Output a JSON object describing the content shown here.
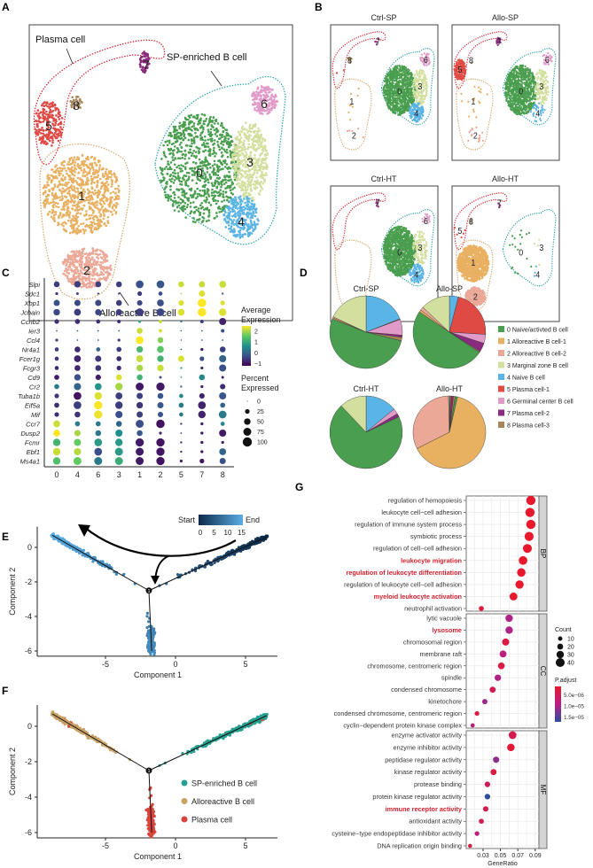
{
  "panel_labels": {
    "A": "A",
    "B": "B",
    "C": "C",
    "D": "D",
    "E": "E",
    "F": "F",
    "G": "G"
  },
  "clusters": [
    {
      "id": "0",
      "name": "0 Naive/activted B cell",
      "color": "#4a9e4f"
    },
    {
      "id": "1",
      "name": "1 Alloreactive B cell-1",
      "color": "#e8b061"
    },
    {
      "id": "2",
      "name": "2 Alloreactive B cell-2",
      "color": "#eba897"
    },
    {
      "id": "3",
      "name": "3 Marginal zone B cell",
      "color": "#d3df9e"
    },
    {
      "id": "4",
      "name": "4 Naive B cell",
      "color": "#5ab4e5"
    },
    {
      "id": "5",
      "name": "5 Plasma cell-1",
      "color": "#e04a45"
    },
    {
      "id": "6",
      "name": "6 Germinal center B cell",
      "color": "#e19bc9"
    },
    {
      "id": "7",
      "name": "7 Plasma cell-2",
      "color": "#8b2a7e"
    },
    {
      "id": "8",
      "name": "8 Plasma cell-3",
      "color": "#a8865a"
    }
  ],
  "panel_A": {
    "group_labels": {
      "plasma": "Plasma cell",
      "sp": "SP-enriched B cell",
      "allo": "Alloreactive B cell"
    },
    "group_colors": {
      "plasma": "#d6202f",
      "sp": "#2aa3a6",
      "allo": "#d9a66b"
    }
  },
  "panel_B": {
    "titles": [
      "Ctrl-SP",
      "Allo-SP",
      "Ctrl-HT",
      "Allo-HT"
    ]
  },
  "chart_data": [
    {
      "panel": "C",
      "type": "dotplot",
      "columns": [
        "0",
        "4",
        "6",
        "3",
        "1",
        "2",
        "5",
        "7",
        "8"
      ],
      "genes": [
        "Slpi",
        "Sdc1",
        "Xbp1",
        "Jchain",
        "Ccnb2",
        "Ier3",
        "Ccl4",
        "Nr4a1",
        "Fcer1g",
        "Fcgr3",
        "Cd9",
        "Cr2",
        "Tuba1b",
        "Eif5a",
        "Mif",
        "Ccr7",
        "Dusp2",
        "Fcmr",
        "Ebf1",
        "Ms4a1"
      ],
      "avg_expression": [
        [
          -0.5,
          -0.5,
          -0.5,
          -0.5,
          -0.3,
          -0.2,
          2.2,
          2.2,
          2.2
        ],
        [
          -0.5,
          -0.5,
          -0.5,
          -0.5,
          -0.5,
          -0.3,
          2.0,
          2.3,
          -0.3
        ],
        [
          -0.3,
          -0.4,
          -0.4,
          -0.5,
          -0.4,
          -0.3,
          2.3,
          2.5,
          2.3
        ],
        [
          -0.4,
          -0.5,
          -0.4,
          -0.5,
          -0.5,
          -0.4,
          2.3,
          2.5,
          2.3
        ],
        [
          -0.7,
          -0.7,
          -0.7,
          -0.7,
          1.0,
          2.2,
          0.3,
          -0.5,
          -0.8
        ],
        [
          0,
          0,
          0,
          0,
          2.2,
          2.3,
          0,
          0,
          -0.3
        ],
        [
          -0.5,
          0,
          0,
          -0.5,
          2.5,
          1.8,
          0,
          0,
          0
        ],
        [
          -0.5,
          -0.7,
          0,
          -0.5,
          1.3,
          1.5,
          0,
          -1,
          -0.5
        ],
        [
          -0.6,
          -0.8,
          -0.6,
          -0.7,
          2.2,
          1.2,
          2.3,
          -0.3,
          0
        ],
        [
          -0.7,
          -0.8,
          -0.6,
          -0.7,
          2.0,
          2.2,
          1.0,
          -0.7,
          -0.3
        ],
        [
          -0.9,
          -0.3,
          -0.9,
          2.3,
          1.2,
          -0.3,
          1.0,
          0.5,
          -1
        ],
        [
          0.3,
          0,
          0.7,
          2.0,
          -0.9,
          -0.9,
          -0.3,
          -0.8,
          -0.7
        ],
        [
          -0.6,
          -1,
          2.3,
          -0.5,
          -0.5,
          -0.2,
          0.5,
          -0.8,
          -0.2
        ],
        [
          -0.7,
          -0.5,
          2.5,
          -0.5,
          -0.6,
          -0.2,
          0.3,
          -0.8,
          0
        ],
        [
          -0.7,
          -0.6,
          2.4,
          -0.3,
          -0.5,
          -0.2,
          0.3,
          -0.8,
          0.3
        ],
        [
          2.2,
          0.3,
          0.3,
          0,
          -0.3,
          -1,
          -0.5,
          -0.9,
          0.5
        ],
        [
          2.5,
          2.0,
          0.3,
          0.6,
          -0.2,
          -0.8,
          -0.5,
          -1,
          -0.9
        ],
        [
          1.2,
          1.6,
          0.8,
          0.8,
          -0.9,
          -1,
          -0.8,
          -1,
          -0.8
        ],
        [
          2.2,
          2.1,
          -0.3,
          0.8,
          -0.9,
          -1,
          -0.8,
          -1,
          0
        ],
        [
          1.4,
          1.6,
          0.3,
          1.1,
          -0.9,
          -1,
          -0.8,
          -1,
          -0.3
        ]
      ],
      "percent_expressed": [
        [
          40,
          50,
          40,
          40,
          70,
          70,
          40,
          45,
          55
        ],
        [
          10,
          8,
          5,
          5,
          25,
          20,
          3,
          45,
          5
        ],
        [
          45,
          45,
          45,
          40,
          35,
          55,
          35,
          85,
          25
        ],
        [
          50,
          55,
          45,
          45,
          70,
          70,
          55,
          85,
          65
        ],
        [
          25,
          30,
          20,
          15,
          10,
          15,
          5,
          15,
          60
        ],
        [
          3,
          3,
          3,
          3,
          40,
          15,
          2,
          3,
          15
        ],
        [
          10,
          3,
          3,
          10,
          70,
          40,
          2,
          3,
          3
        ],
        [
          20,
          40,
          20,
          30,
          50,
          55,
          3,
          10,
          40
        ],
        [
          20,
          55,
          45,
          30,
          55,
          50,
          45,
          25,
          60
        ],
        [
          20,
          40,
          40,
          25,
          50,
          50,
          5,
          10,
          60
        ],
        [
          30,
          50,
          35,
          40,
          40,
          8,
          3,
          40,
          8
        ],
        [
          30,
          60,
          55,
          65,
          75,
          80,
          5,
          10,
          35
        ],
        [
          25,
          70,
          65,
          55,
          45,
          40,
          20,
          35,
          60
        ],
        [
          30,
          70,
          80,
          65,
          50,
          45,
          30,
          70,
          30
        ],
        [
          25,
          40,
          80,
          60,
          45,
          35,
          20,
          65,
          70
        ],
        [
          55,
          30,
          30,
          40,
          75,
          85,
          5,
          10,
          20
        ],
        [
          55,
          45,
          40,
          60,
          40,
          10,
          3,
          10,
          60
        ],
        [
          65,
          60,
          70,
          65,
          80,
          80,
          5,
          10,
          10
        ],
        [
          65,
          60,
          70,
          75,
          75,
          80,
          5,
          10,
          55
        ],
        [
          65,
          75,
          75,
          75,
          75,
          80,
          10,
          25,
          45
        ]
      ],
      "color_legend": {
        "title_line1": "Average",
        "title_line2": "Expression",
        "ticks": [
          "2",
          "1",
          "0",
          "−1"
        ],
        "range": [
          -1.2,
          2.5
        ]
      },
      "size_legend": {
        "title_line1": "Percent",
        "title_line2": "Expressed",
        "ticks": [
          "0",
          "25",
          "50",
          "75",
          "100"
        ]
      }
    },
    {
      "panel": "D",
      "type": "pie",
      "legend_placement": "right",
      "pies": [
        {
          "title": "Ctrl-SP",
          "values": {
            "4": 19,
            "5": 0.3,
            "6": 7,
            "7": 1,
            "8": 1.5,
            "0": 52,
            "1": 0.5,
            "2": 0.5,
            "3": 18
          }
        },
        {
          "title": "Allo-SP",
          "values": {
            "4": 4,
            "5": 22,
            "6": 4,
            "7": 4,
            "8": 0.5,
            "0": 50,
            "1": 1,
            "2": 1.5,
            "3": 13
          }
        },
        {
          "title": "Ctrl-HT",
          "values": {
            "4": 14,
            "5": 0,
            "6": 2.5,
            "7": 1.5,
            "8": 0,
            "0": 70,
            "1": 0,
            "2": 0,
            "3": 12
          }
        },
        {
          "title": "Allo-HT",
          "values": {
            "4": 0.4,
            "5": 0.6,
            "6": 0,
            "7": 0.8,
            "8": 0.8,
            "0": 1,
            "1": 64,
            "2": 32,
            "3": 0.4
          }
        }
      ]
    },
    {
      "panel": "E",
      "type": "scatter",
      "xlabel": "Component 1",
      "ylabel": "Component 2",
      "xticks": [
        "-5",
        "0",
        "5"
      ],
      "yticks": [
        "0",
        "-2",
        "-4",
        "-6"
      ],
      "xlim": [
        -9.2,
        7.5
      ],
      "ylim": [
        -6.3,
        1.2
      ],
      "branch_point": [
        -1.9,
        -2.5
      ],
      "branch_point_label": "1",
      "branches": [
        {
          "end": [
            6.5,
            0.6
          ],
          "pseudotime": [
            0,
            8
          ],
          "cell_type": "SP-enriched B cell"
        },
        {
          "end": [
            -8.8,
            0.7
          ],
          "pseudotime": [
            8,
            15
          ],
          "cell_type": "Alloreactive B cell"
        },
        {
          "end": [
            -1.7,
            -6.0
          ],
          "pseudotime": [
            8,
            11
          ],
          "cell_type": "Plasma cell"
        }
      ],
      "colorbar": {
        "start_label": "Start",
        "end_label": "End",
        "ticks": [
          "0",
          "5",
          "10",
          "15"
        ],
        "colors": [
          "#0d2a4a",
          "#5aaee6"
        ]
      }
    },
    {
      "panel": "F",
      "type": "scatter",
      "xlabel": "Component 1",
      "ylabel": "Component 2",
      "xticks": [
        "-5",
        "0",
        "5"
      ],
      "yticks": [
        "0",
        "-2",
        "-4",
        "-6"
      ],
      "legend_placement": "bottom-right",
      "legend": [
        {
          "name": "SP-enriched B cell",
          "color": "#26a08f"
        },
        {
          "name": "Alloreactive B cell",
          "color": "#c9a267"
        },
        {
          "name": "Plasma cell",
          "color": "#d8453c"
        }
      ]
    },
    {
      "panel": "G",
      "type": "dotplot",
      "xlabel": "GeneRatio",
      "xticks": [
        "0.03",
        "0.05",
        "0.07",
        "0.09"
      ],
      "xlim": [
        0.013,
        0.092
      ],
      "size_legend": {
        "title": "Count",
        "ticks": [
          "10",
          "20",
          "30",
          "40"
        ]
      },
      "color_legend": {
        "title": "P.adjust",
        "ticks": [
          "5.0e−06",
          "1.0e−05",
          "1.5e−05"
        ],
        "range": [
          1e-06,
          1.6e-05
        ]
      },
      "facets": [
        {
          "name": "BP",
          "terms": [
            {
              "term": "regulation of hemopoiesis",
              "ratio": 0.085,
              "count": 42,
              "p": 1e-06,
              "highlight": false
            },
            {
              "term": "leukocyte cell−cell adhesion",
              "ratio": 0.084,
              "count": 42,
              "p": 1e-06,
              "highlight": false
            },
            {
              "term": "regulation of immune system process",
              "ratio": 0.085,
              "count": 42,
              "p": 1e-06,
              "highlight": false
            },
            {
              "term": "symbiotic process",
              "ratio": 0.083,
              "count": 41,
              "p": 1e-06,
              "highlight": false
            },
            {
              "term": "regulation of cell−cell adhesion",
              "ratio": 0.081,
              "count": 40,
              "p": 1e-06,
              "highlight": false
            },
            {
              "term": "leukocyte migration",
              "ratio": 0.076,
              "count": 38,
              "p": 1e-06,
              "highlight": true
            },
            {
              "term": "regulation of leukocyte differentiation",
              "ratio": 0.074,
              "count": 37,
              "p": 1e-06,
              "highlight": true
            },
            {
              "term": "regulation of leukocyte cell−cell adhesion",
              "ratio": 0.072,
              "count": 36,
              "p": 1e-06,
              "highlight": false
            },
            {
              "term": "myeloid leukocyte activation",
              "ratio": 0.065,
              "count": 33,
              "p": 1e-06,
              "highlight": true
            },
            {
              "term": "neutrophil activation",
              "ratio": 0.028,
              "count": 14,
              "p": 2e-06,
              "highlight": false
            }
          ]
        },
        {
          "name": "CC",
          "terms": [
            {
              "term": "lytic vacuole",
              "ratio": 0.06,
              "count": 30,
              "p": 9e-06,
              "highlight": false
            },
            {
              "term": "lysosome",
              "ratio": 0.06,
              "count": 30,
              "p": 9e-06,
              "highlight": true
            },
            {
              "term": "chromosomal region",
              "ratio": 0.056,
              "count": 28,
              "p": 3e-06,
              "highlight": false
            },
            {
              "term": "membrane raft",
              "ratio": 0.053,
              "count": 27,
              "p": 8e-06,
              "highlight": false
            },
            {
              "term": "chromosome, centromeric region",
              "ratio": 0.051,
              "count": 26,
              "p": 3e-06,
              "highlight": false
            },
            {
              "term": "spindle",
              "ratio": 0.047,
              "count": 24,
              "p": 9e-06,
              "highlight": false
            },
            {
              "term": "condensed chromosome",
              "ratio": 0.041,
              "count": 21,
              "p": 4e-06,
              "highlight": false
            },
            {
              "term": "kinetochore",
              "ratio": 0.032,
              "count": 16,
              "p": 1e-05,
              "highlight": false
            },
            {
              "term": "condensed chromosome, centromeric region",
              "ratio": 0.023,
              "count": 12,
              "p": 3e-06,
              "highlight": false
            },
            {
              "term": "cyclin−dependent protein kinase complex",
              "ratio": 0.018,
              "count": 9,
              "p": 8e-06,
              "highlight": false
            }
          ]
        },
        {
          "name": "MF",
          "terms": [
            {
              "term": "enzyme activator activity",
              "ratio": 0.064,
              "count": 32,
              "p": 4e-06,
              "highlight": false
            },
            {
              "term": "enzyme inhibitor activity",
              "ratio": 0.062,
              "count": 31,
              "p": 2e-06,
              "highlight": false
            },
            {
              "term": "peptidase regulator activity",
              "ratio": 0.045,
              "count": 23,
              "p": 1.1e-05,
              "highlight": false
            },
            {
              "term": "kinase regulator activity",
              "ratio": 0.042,
              "count": 21,
              "p": 3e-06,
              "highlight": false
            },
            {
              "term": "protease binding",
              "ratio": 0.035,
              "count": 18,
              "p": 5e-06,
              "highlight": false
            },
            {
              "term": "protein kinase regulator activity",
              "ratio": 0.035,
              "count": 18,
              "p": 1.6e-05,
              "highlight": false
            },
            {
              "term": "immune receptor activity",
              "ratio": 0.033,
              "count": 17,
              "p": 4e-06,
              "highlight": true
            },
            {
              "term": "antioxidant activity",
              "ratio": 0.028,
              "count": 14,
              "p": 4e-06,
              "highlight": false
            },
            {
              "term": "cysteine−type endopeptidase inhibitor activity",
              "ratio": 0.023,
              "count": 12,
              "p": 8e-06,
              "highlight": false
            },
            {
              "term": "DNA replication origin binding",
              "ratio": 0.015,
              "count": 8,
              "p": 3e-06,
              "highlight": false
            }
          ]
        }
      ]
    }
  ]
}
